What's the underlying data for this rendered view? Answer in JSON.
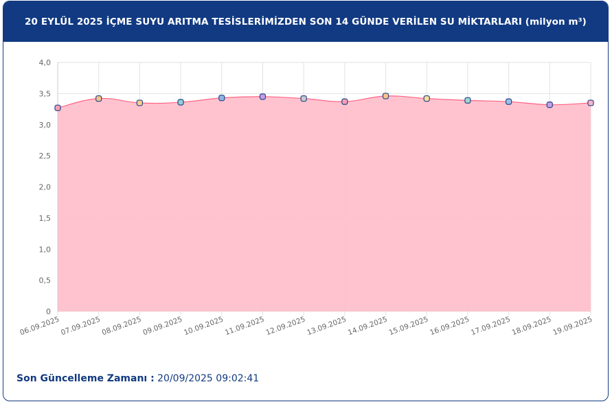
{
  "header": {
    "title": "20 EYLÜL 2025 İÇME SUYU ARITMA TESİSLERİMİZDEN SON 14 GÜNDE VERİLEN SU MİKTARLARI (milyon m³)"
  },
  "footer": {
    "label": "Son Güncelleme Zamanı :",
    "value": "20/09/2025 09:02:41"
  },
  "chart_data": {
    "type": "area",
    "title": "20 EYLÜL 2025 İÇME SUYU ARITMA TESİSLERİMİZDEN SON 14 GÜNDE VERİLEN SU MİKTARLARI (milyon m³)",
    "categories": [
      "06.09.2025",
      "07.09.2025",
      "08.09.2025",
      "09.09.2025",
      "10.09.2025",
      "11.09.2025",
      "12.09.2025",
      "13.09.2025",
      "14.09.2025",
      "15.09.2025",
      "16.09.2025",
      "17.09.2025",
      "18.09.2025",
      "19.09.2025"
    ],
    "values": [
      3.27,
      3.42,
      3.35,
      3.36,
      3.43,
      3.45,
      3.42,
      3.37,
      3.46,
      3.42,
      3.39,
      3.37,
      3.32,
      3.35
    ],
    "ylim": [
      0,
      4
    ],
    "yticks": [
      "0",
      "0,5",
      "1,0",
      "1,5",
      "2,0",
      "2,5",
      "3,0",
      "3,5",
      "4,0"
    ],
    "grid": true,
    "line_color": "#ff6384",
    "fill_color": "#ffc0cc",
    "point_border": "#2f4f8f",
    "point_colors": [
      "#ff9fb3",
      "#ffc38a",
      "#ffcf8a",
      "#8fd0d0",
      "#8fb6e6",
      "#c79be8",
      "#c8cbd0",
      "#ff9fb3",
      "#ffc38a",
      "#ffdf9a",
      "#9fd6d0",
      "#9fbfe6",
      "#c9a0e0",
      "#ffb3c6"
    ]
  }
}
